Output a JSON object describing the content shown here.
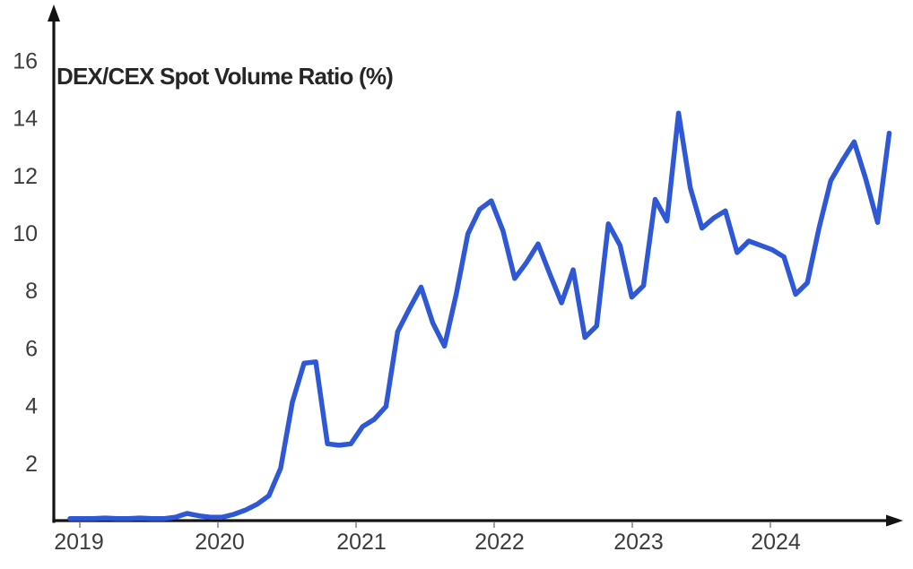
{
  "title": "DEX/CEX Spot Volume Ratio (%)",
  "colors": {
    "line": "#2f58d6",
    "axis": "#141414",
    "labels": "#3c3c3c",
    "tick_marks": "#8a8a8a",
    "background": "#ffffff"
  },
  "chart_data": {
    "type": "line",
    "title": "DEX/CEX Spot Volume Ratio (%)",
    "series_name": "DEX/CEX spot volume ratio",
    "unit": "%",
    "frequency": "monthly",
    "x_range": [
      "2019",
      "2024"
    ],
    "x_tick_labels": [
      "2019",
      "2020",
      "2021",
      "2022",
      "2023",
      "2024"
    ],
    "y_tick_labels": [
      2,
      4,
      6,
      8,
      10,
      12,
      14,
      16
    ],
    "ylim": [
      0,
      17.5
    ],
    "grid": false,
    "legend": "none",
    "values": [
      0.1,
      0.1,
      0.1,
      0.12,
      0.1,
      0.1,
      0.12,
      0.1,
      0.1,
      0.15,
      0.28,
      0.2,
      0.15,
      0.15,
      0.25,
      0.4,
      0.6,
      0.9,
      1.85,
      4.15,
      5.5,
      5.55,
      2.7,
      2.65,
      2.7,
      3.3,
      3.55,
      4.0,
      6.6,
      7.4,
      8.15,
      6.9,
      6.1,
      7.9,
      10.0,
      10.85,
      11.15,
      10.1,
      8.45,
      9.0,
      9.65,
      8.6,
      7.6,
      8.75,
      6.4,
      6.8,
      10.35,
      9.6,
      7.8,
      8.2,
      11.2,
      10.45,
      14.2,
      11.6,
      10.2,
      10.55,
      10.8,
      9.35,
      9.75,
      9.6,
      9.45,
      9.2,
      7.9,
      8.3,
      10.2,
      11.85,
      12.55,
      13.2,
      11.9,
      10.4,
      13.5
    ]
  }
}
